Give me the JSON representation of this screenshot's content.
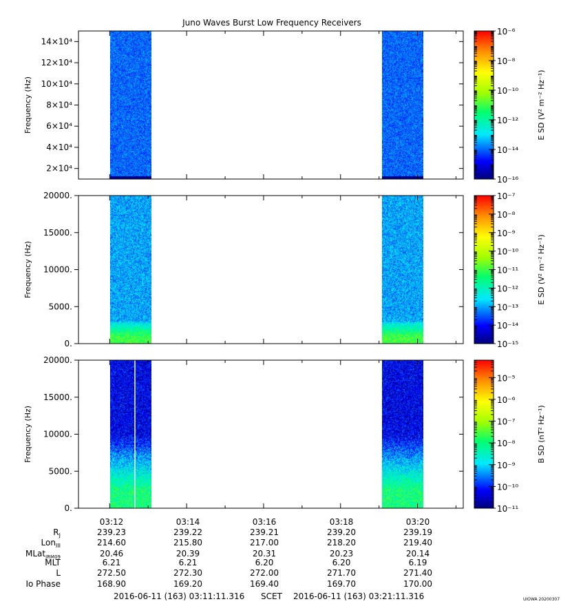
{
  "title": "Juno Waves Burst Low Frequency Receivers",
  "chart_data": [
    {
      "type": "heatmap",
      "ylabel": "Frequency (Hz)",
      "y_ticks": [
        "2×10⁴",
        "4×10⁴",
        "6×10⁴",
        "8×10⁴",
        "10×10⁴",
        "12×10⁴",
        "14×10⁴"
      ],
      "y_tick_values": [
        20000,
        40000,
        60000,
        80000,
        100000,
        120000,
        140000
      ],
      "ylim": [
        10000,
        150000
      ],
      "colorbar_label": "E SD (V² m⁻² Hz⁻¹)",
      "colorbar_ticks": [
        "10⁻⁶",
        "10⁻⁸",
        "10⁻¹⁰",
        "10⁻¹²",
        "10⁻¹⁴",
        "10⁻¹⁶"
      ],
      "colorbar_tick_values": [
        -6,
        -8,
        -10,
        -12,
        -14,
        -16
      ],
      "colorbar_range": [
        -16,
        -6
      ],
      "scale": "log",
      "data_blocks": [
        {
          "start": "03:12:01",
          "end": "03:13:05",
          "typical_level": -14,
          "low_band_level": -16
        },
        {
          "start": "03:19:05",
          "end": "03:20:09",
          "typical_level": -14,
          "low_band_level": -16
        }
      ]
    },
    {
      "type": "heatmap",
      "ylabel": "Frequency (Hz)",
      "y_ticks": [
        "0.",
        "5000.",
        "10000.",
        "15000.",
        "20000."
      ],
      "y_tick_values": [
        0,
        5000,
        10000,
        15000,
        20000
      ],
      "ylim": [
        0,
        20000
      ],
      "colorbar_label": "E SD (V² m⁻² Hz⁻¹)",
      "colorbar_ticks": [
        "10⁻⁷",
        "10⁻⁸",
        "10⁻⁹",
        "10⁻¹⁰",
        "10⁻¹¹",
        "10⁻¹²",
        "10⁻¹³",
        "10⁻¹⁴",
        "10⁻¹⁵"
      ],
      "colorbar_tick_values": [
        -7,
        -8,
        -9,
        -10,
        -11,
        -12,
        -13,
        -14,
        -15
      ],
      "colorbar_range": [
        -15,
        -7
      ],
      "scale": "log",
      "data_blocks": [
        {
          "start": "03:12:01",
          "end": "03:13:05",
          "typical_level": -13,
          "low_band_level": -11
        },
        {
          "start": "03:19:05",
          "end": "03:20:09",
          "typical_level": -13,
          "low_band_level": -11
        }
      ]
    },
    {
      "type": "heatmap",
      "ylabel": "Frequency (Hz)",
      "y_ticks": [
        "0.",
        "5000.",
        "10000.",
        "15000.",
        "20000."
      ],
      "y_tick_values": [
        0,
        5000,
        10000,
        15000,
        20000
      ],
      "ylim": [
        0,
        20000
      ],
      "colorbar_label": "B SD (nT² Hz⁻¹)",
      "colorbar_ticks": [
        "10⁻⁵",
        "10⁻⁶",
        "10⁻⁷",
        "10⁻⁸",
        "10⁻⁹",
        "10⁻¹⁰",
        "10⁻¹¹"
      ],
      "colorbar_tick_values": [
        -5,
        -6,
        -7,
        -8,
        -9,
        -10,
        -11
      ],
      "colorbar_range": [
        -11,
        -4.2
      ],
      "scale": "log",
      "data_blocks": [
        {
          "start": "03:12:01",
          "end": "03:13:05",
          "typical_level": -10.3,
          "low_band_level": -8
        },
        {
          "start": "03:19:05",
          "end": "03:20:09",
          "typical_level": -10.3,
          "low_band_level": -8
        }
      ]
    }
  ],
  "x_axis": {
    "range": [
      "03:11:11.316",
      "03:21:11.316"
    ],
    "tick_labels": [
      "03:12",
      "03:14",
      "03:16",
      "03:18",
      "03:20"
    ]
  },
  "ephemeris": {
    "row_labels": [
      "R_J",
      "Lon_III",
      "MLat_JRM09",
      "MLT",
      "L",
      "Io Phase"
    ],
    "rows": [
      [
        "239.23",
        "239.22",
        "239.21",
        "239.20",
        "239.19"
      ],
      [
        "214.60",
        "215.80",
        "217.00",
        "218.20",
        "219.40"
      ],
      [
        "20.46",
        "20.39",
        "20.31",
        "20.23",
        "20.14"
      ],
      [
        "6.21",
        "6.21",
        "6.20",
        "6.20",
        "6.19"
      ],
      [
        "272.50",
        "272.30",
        "272.00",
        "271.70",
        "271.40"
      ],
      [
        "168.90",
        "169.20",
        "169.40",
        "169.70",
        "170.00"
      ]
    ]
  },
  "footer": {
    "start": "2016-06-11 (163) 03:11:11.316",
    "scet": "SCET",
    "end": "2016-06-11 (163) 03:21:11.316",
    "credit": "UIOWA 20200307"
  }
}
